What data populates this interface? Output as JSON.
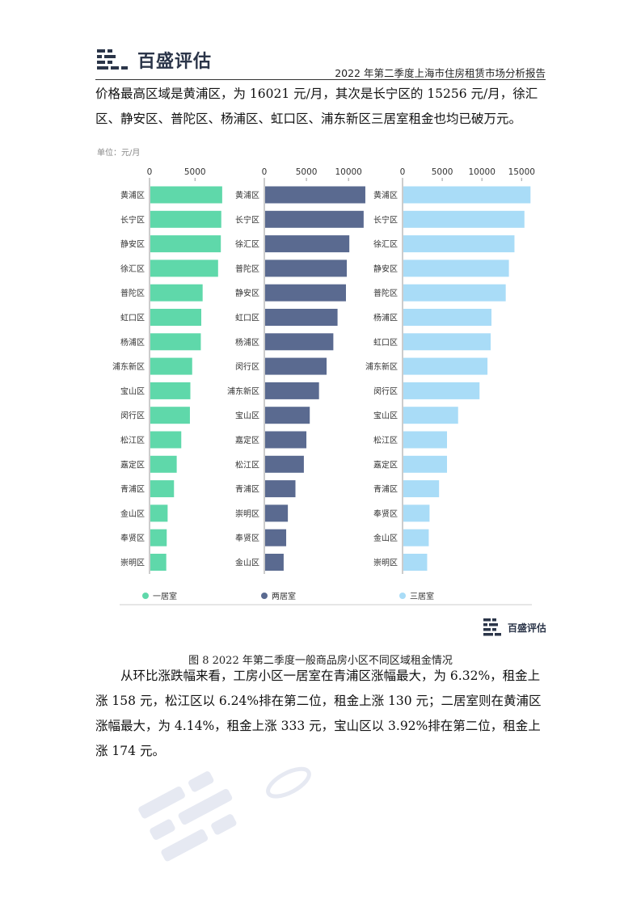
{
  "header": {
    "brand": "百盛评估",
    "report_title": "2022 年第二季度上海市住房租赁市场分析报告"
  },
  "paragraph_1": "价格最高区域是黄浦区，为 16021 元/月，其次是长宁区的 15256 元/月，徐汇区、静安区、普陀区、杨浦区、虹口区、浦东新区三居室租金也均已破万元。",
  "caption": "图 8 2022 年第二季度一般商品房小区不同区域租金情况",
  "paragraph_2": "从环比涨跌幅来看，工房小区一居室在青浦区涨幅最大，为 6.32%，租金上涨 158 元，松江区以 6.24%排在第二位，租金上涨 130 元；二居室则在黄浦区涨幅最大，为 4.14%，租金上涨 333 元，宝山区以 3.92%排在第二位，租金上涨 174 元。",
  "chart_brand": "百盛评估",
  "colors": {
    "one_bed": "#5fd8aa",
    "two_bed": "#5a6a90",
    "three_bed": "#a9dcf7"
  },
  "chart_data": {
    "type": "bar",
    "orientation": "horizontal",
    "unit": "单位：元/月",
    "panels": [
      {
        "name": "一居室",
        "ticks": [
          0,
          5000
        ],
        "xlim": [
          0,
          8000
        ],
        "categories": [
          "黄浦区",
          "长宁区",
          "静安区",
          "徐汇区",
          "普陀区",
          "虹口区",
          "杨浦区",
          "浦东新区",
          "宝山区",
          "闵行区",
          "松江区",
          "嘉定区",
          "青浦区",
          "金山区",
          "奉贤区",
          "崇明区"
        ],
        "values": [
          7900,
          7800,
          7750,
          7450,
          5750,
          5600,
          5550,
          4600,
          4400,
          4350,
          3400,
          2900,
          2600,
          1900,
          1800,
          1750
        ]
      },
      {
        "name": "两居室",
        "ticks": [
          0,
          5000,
          10000
        ],
        "xlim": [
          0,
          12000
        ],
        "categories": [
          "黄浦区",
          "长宁区",
          "徐汇区",
          "普陀区",
          "静安区",
          "虹口区",
          "杨浦区",
          "闵行区",
          "浦东新区",
          "宝山区",
          "嘉定区",
          "松江区",
          "青浦区",
          "崇明区",
          "奉贤区",
          "金山区"
        ],
        "values": [
          11900,
          11700,
          10000,
          9700,
          9600,
          8600,
          8100,
          7300,
          6400,
          5300,
          4900,
          4600,
          3600,
          2700,
          2500,
          2200
        ]
      },
      {
        "name": "三居室",
        "ticks": [
          0,
          5000,
          10000,
          15000
        ],
        "xlim": [
          0,
          16500
        ],
        "categories": [
          "黄浦区",
          "长宁区",
          "徐汇区",
          "静安区",
          "普陀区",
          "杨浦区",
          "虹口区",
          "浦东新区",
          "闵行区",
          "宝山区",
          "松江区",
          "嘉定区",
          "青浦区",
          "奉贤区",
          "金山区",
          "崇明区"
        ],
        "values": [
          16021,
          15256,
          14000,
          13300,
          12900,
          11100,
          11000,
          10600,
          9600,
          6900,
          5500,
          5500,
          4500,
          3300,
          3200,
          3000
        ]
      }
    ],
    "legend": [
      "一居室",
      "两居室",
      "三居室"
    ],
    "legend_position": "bottom"
  }
}
